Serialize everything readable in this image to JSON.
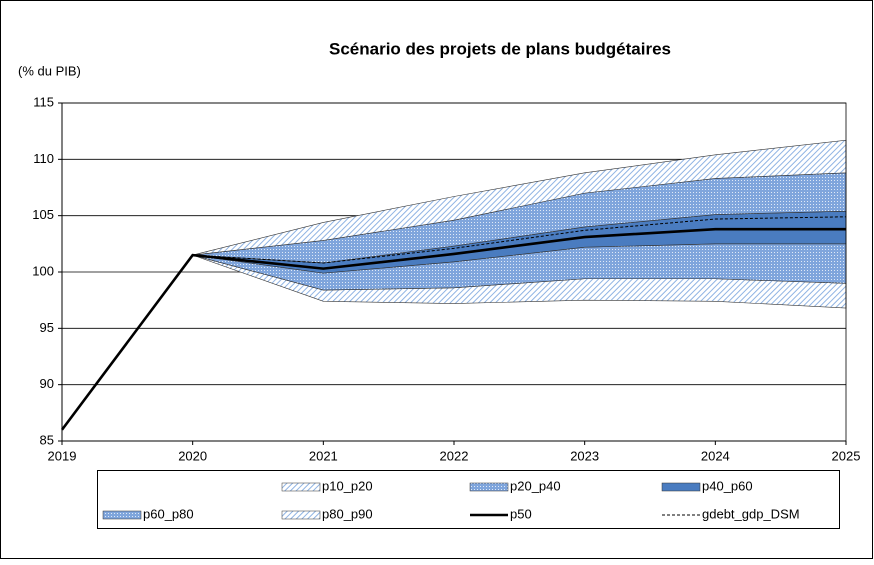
{
  "chart_data": {
    "type": "fan",
    "title": "Scénario des projets de plans budgétaires",
    "y_label": "(% du PIB)",
    "x": [
      2019,
      2020,
      2021,
      2022,
      2023,
      2024,
      2025
    ],
    "xlim": [
      2019,
      2025
    ],
    "xticks": [
      2019,
      2020,
      2021,
      2022,
      2023,
      2024,
      2025
    ],
    "ylim": [
      85,
      115
    ],
    "yticks": [
      85,
      90,
      95,
      100,
      105,
      110,
      115
    ],
    "grid": true,
    "bands": [
      {
        "name": "p10_p20",
        "fill": "hatch",
        "color": "#8fb3e3",
        "values": [
          null,
          [
            101.5,
            101.5
          ],
          [
            97.4,
            98.4
          ],
          [
            97.2,
            98.6
          ],
          [
            97.5,
            99.4
          ],
          [
            97.4,
            99.4
          ],
          [
            96.8,
            99.0
          ]
        ]
      },
      {
        "name": "p20_p40",
        "fill": "dots",
        "color": "#7fa5dc",
        "values": [
          null,
          [
            101.5,
            101.5
          ],
          [
            98.4,
            99.9
          ],
          [
            98.6,
            100.9
          ],
          [
            99.4,
            102.2
          ],
          [
            99.4,
            102.5
          ],
          [
            99.0,
            102.5
          ]
        ]
      },
      {
        "name": "p40_p60",
        "fill": "solid",
        "color": "#4a7cc0",
        "values": [
          null,
          [
            101.5,
            101.5
          ],
          [
            99.9,
            100.8
          ],
          [
            100.9,
            102.3
          ],
          [
            102.2,
            104.0
          ],
          [
            102.5,
            105.1
          ],
          [
            102.5,
            105.4
          ]
        ]
      },
      {
        "name": "p60_p80",
        "fill": "dots",
        "color": "#7fa5dc",
        "values": [
          null,
          [
            101.5,
            101.5
          ],
          [
            100.8,
            102.8
          ],
          [
            102.3,
            104.6
          ],
          [
            104.0,
            107.0
          ],
          [
            105.1,
            108.3
          ],
          [
            105.4,
            108.8
          ]
        ]
      },
      {
        "name": "p80_p90",
        "fill": "hatch",
        "color": "#8fb3e3",
        "values": [
          null,
          [
            101.5,
            101.5
          ],
          [
            102.8,
            104.4
          ],
          [
            104.6,
            106.7
          ],
          [
            107.0,
            108.8
          ],
          [
            108.3,
            110.4
          ],
          [
            108.8,
            111.7
          ]
        ]
      }
    ],
    "series": [
      {
        "name": "p50",
        "color": "#000000",
        "style": "solid",
        "values": [
          86.0,
          101.5,
          100.3,
          101.6,
          103.1,
          103.8,
          103.8
        ]
      },
      {
        "name": "gdebt_gdp_DSM",
        "color": "#000000",
        "style": "dashed",
        "values": [
          null,
          101.5,
          100.8,
          102.1,
          103.7,
          104.7,
          104.9
        ]
      }
    ]
  }
}
